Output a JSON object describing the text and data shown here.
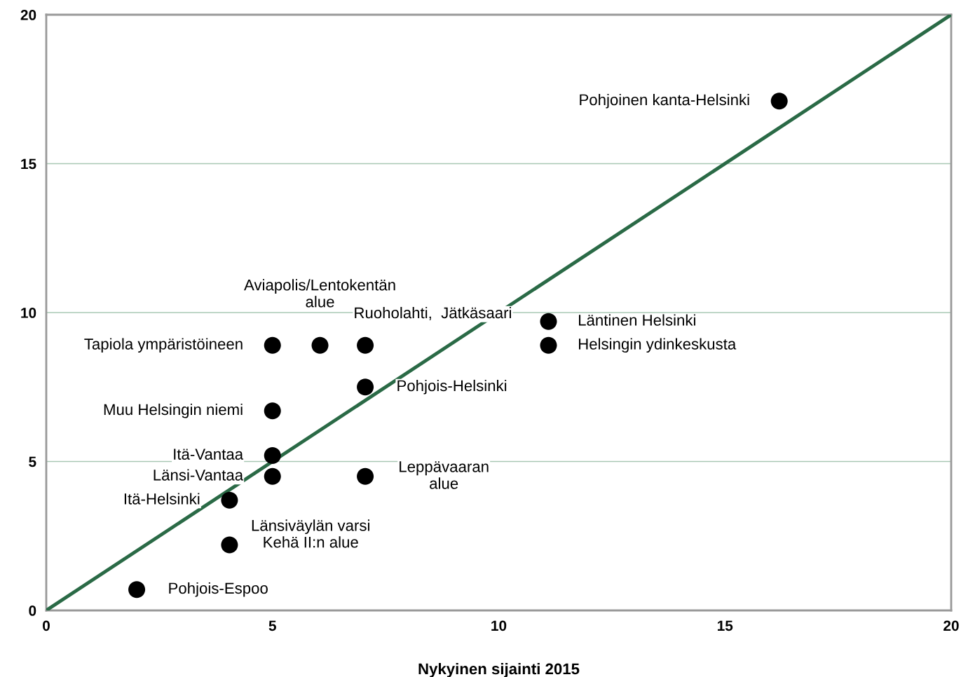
{
  "chart_data": {
    "type": "scatter",
    "xlabel": "Nykyinen sijainti 2015",
    "xlim": [
      0,
      20
    ],
    "ylim": [
      0,
      20
    ],
    "xticks": [
      0,
      5,
      10,
      15,
      20
    ],
    "yticks": [
      0,
      5,
      10,
      15,
      20
    ],
    "grid": "y",
    "marker": "circle",
    "series": [
      {
        "color": "#000000",
        "x": [
          16.2,
          11.1,
          11.1,
          5.0,
          6.05,
          7.05,
          7.05,
          5.0,
          5.0,
          5.0,
          7.05,
          4.05,
          4.05,
          2.0
        ],
        "values": [
          17.1,
          9.7,
          8.9,
          8.9,
          8.9,
          8.9,
          7.5,
          6.7,
          5.2,
          4.5,
          4.5,
          3.7,
          2.2,
          0.7
        ]
      },
      {
        "type": "line",
        "marker": "none",
        "color": "#2a6a46",
        "x": [
          0,
          20
        ],
        "values": [
          0,
          20
        ]
      }
    ],
    "annotations": [
      {
        "text": "Pohjoinen kanta-Helsinki",
        "x": 16.2,
        "y": 17.1
      },
      {
        "text": "Läntinen Helsinki",
        "x": 11.1,
        "y": 9.7
      },
      {
        "text": "Helsingin ydinkeskusta",
        "x": 11.1,
        "y": 8.9
      },
      {
        "text": "Tapiola ympäristöineen",
        "x": 5.0,
        "y": 8.9
      },
      {
        "text": "Aviapolis/Lentokentän\nalue",
        "x": 6.05,
        "y": 8.9
      },
      {
        "text": "Ruoholahti,  Jätkäsaari",
        "x": 7.05,
        "y": 8.9
      },
      {
        "text": "Pohjois-Helsinki",
        "x": 7.05,
        "y": 7.5
      },
      {
        "text": "Muu Helsingin niemi",
        "x": 5.0,
        "y": 6.7
      },
      {
        "text": "Itä-Vantaa",
        "x": 5.0,
        "y": 5.2
      },
      {
        "text": "Länsi-Vantaa",
        "x": 5.0,
        "y": 4.5
      },
      {
        "text": "Leppävaaran\nalue",
        "x": 7.05,
        "y": 4.5
      },
      {
        "text": "Itä-Helsinki",
        "x": 4.05,
        "y": 3.7
      },
      {
        "text": "Länsiväylän varsi\nKehä II:n alue",
        "x": 4.05,
        "y": 2.2
      },
      {
        "text": "Pohjois-Espoo",
        "x": 2.0,
        "y": 0.7
      }
    ]
  }
}
